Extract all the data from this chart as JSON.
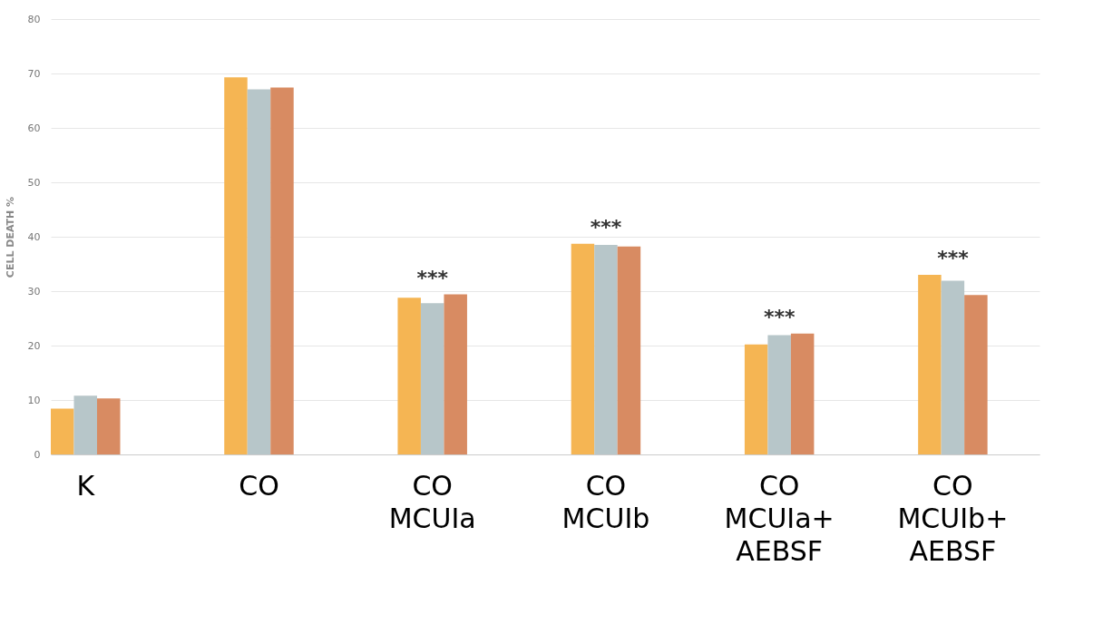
{
  "chart_data": {
    "type": "bar",
    "ylabel": "CELL DEATH %",
    "categories": [
      "K",
      "CO",
      "CO\nMCUIa",
      "CO\nMCUIb",
      "CO\nMCUIa+\nAEBSF",
      "CO\nMCUIb+\nAEBSF"
    ],
    "series": [
      {
        "color": "#f5b553",
        "values": [
          8.4,
          69.3,
          28.8,
          38.7,
          20.2,
          33.0
        ]
      },
      {
        "color": "#b7c6c9",
        "values": [
          10.8,
          67.1,
          27.8,
          38.5,
          21.9,
          31.9
        ]
      },
      {
        "color": "#d88b62",
        "values": [
          10.3,
          67.4,
          29.4,
          38.2,
          22.2,
          29.3
        ]
      }
    ],
    "ylim": [
      0,
      80
    ],
    "yticks": [
      0,
      10,
      20,
      30,
      40,
      50,
      60,
      70,
      80
    ],
    "grid": "y",
    "annotations": [
      "***",
      "***",
      "***",
      "***"
    ]
  }
}
